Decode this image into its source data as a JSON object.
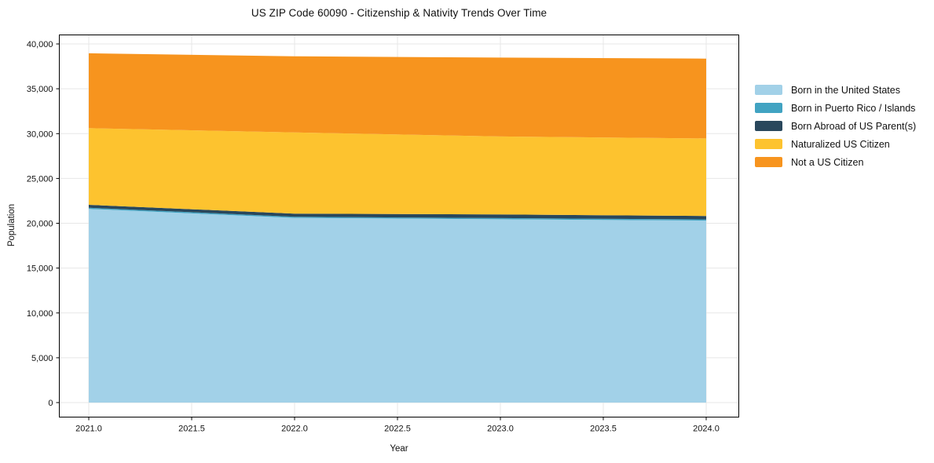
{
  "figure": {
    "title": "US ZIP Code 60090 - Citizenship & Nativity Trends Over Time"
  },
  "chart_data": {
    "type": "area",
    "stacked": true,
    "title": "US ZIP Code 60090 - Citizenship & Nativity Trends Over Time",
    "xlabel": "Year",
    "ylabel": "Population",
    "x": [
      2021,
      2022,
      2023,
      2024
    ],
    "series": [
      {
        "name": "Born in the United States",
        "color": "#a2d1e8",
        "values": [
          21600,
          20600,
          20450,
          20300
        ]
      },
      {
        "name": "Born in Puerto Rico / Islands",
        "color": "#41a3c2",
        "values": [
          130,
          130,
          130,
          130
        ]
      },
      {
        "name": "Born Abroad of US Parent(s)",
        "color": "#29475c",
        "values": [
          330,
          350,
          400,
          380
        ]
      },
      {
        "name": "Naturalized US Citizen",
        "color": "#fdc32f",
        "values": [
          8550,
          9050,
          8700,
          8650
        ]
      },
      {
        "name": "Not a US Citizen",
        "color": "#f7941e",
        "values": [
          8350,
          8500,
          8800,
          8900
        ]
      }
    ],
    "totals": [
      38960,
      38630,
      38480,
      38360
    ],
    "xticks": [
      2021.0,
      2021.5,
      2022.0,
      2022.5,
      2023.0,
      2023.5,
      2024.0
    ],
    "xtick_labels": [
      "2021.0",
      "2021.5",
      "2022.0",
      "2022.5",
      "2023.0",
      "2023.5",
      "2024.0"
    ],
    "yticks": [
      0,
      5000,
      10000,
      15000,
      20000,
      25000,
      30000,
      35000,
      40000
    ],
    "ytick_labels": [
      "0",
      "5,000",
      "10,000",
      "15,000",
      "20,000",
      "25,000",
      "30,000",
      "35,000",
      "40,000"
    ],
    "ylim": [
      0,
      40000
    ],
    "grid": true,
    "legend_position": "right-outside",
    "frame_color": "#000000",
    "grid_color": "#e7e7e7",
    "text_color": "#111111"
  }
}
